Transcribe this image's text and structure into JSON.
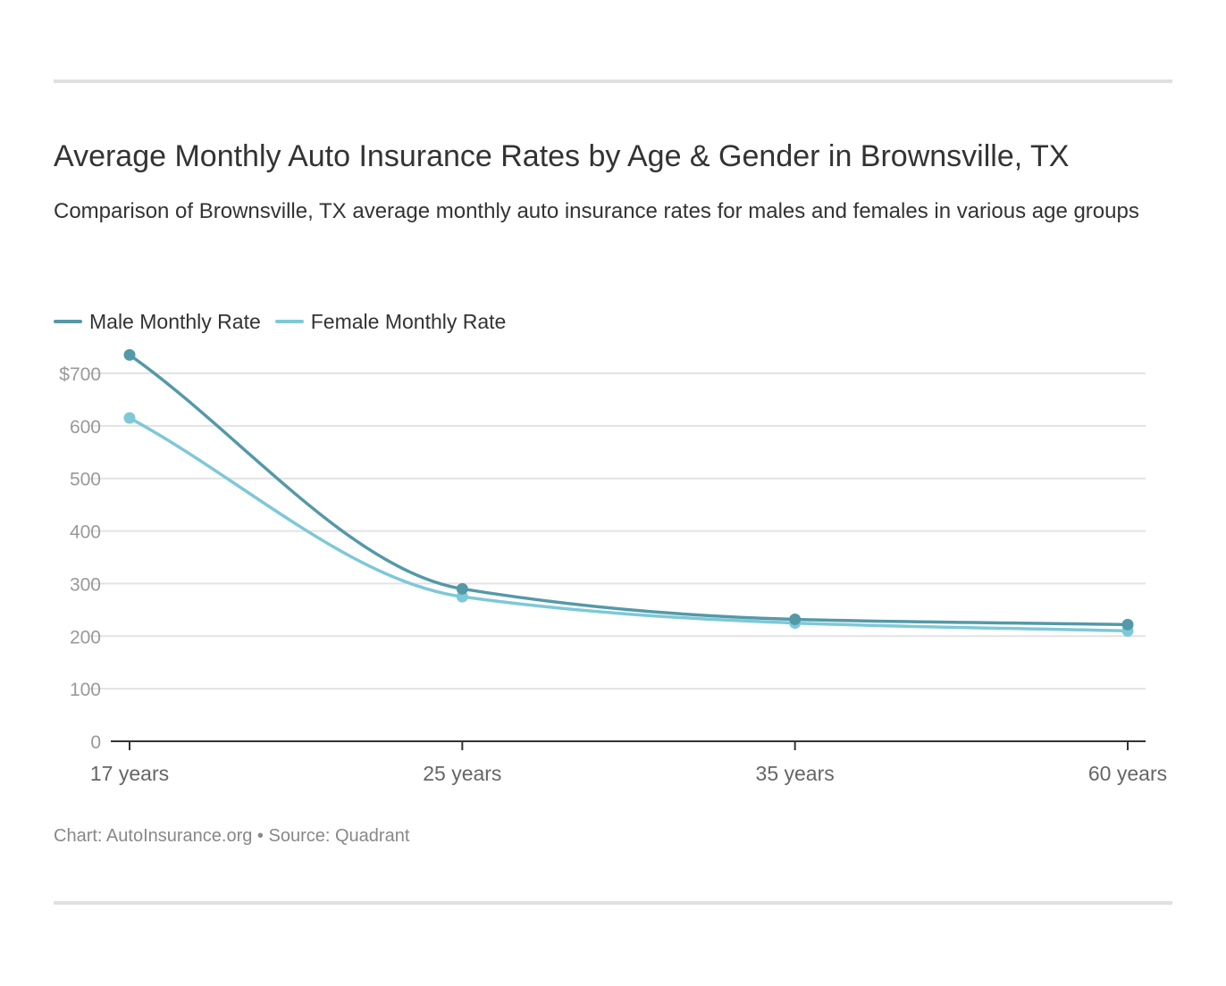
{
  "header": {
    "title": "Average Monthly Auto Insurance Rates by Age & Gender in Brownsville, TX",
    "subtitle": "Comparison of Brownsville, TX average monthly auto insurance rates for males and females in various age groups"
  },
  "footer": {
    "chart_label": "Chart:",
    "chart_source": "AutoInsurance.org",
    "separator": "•",
    "source_label": "Source:",
    "source_name": "Quadrant"
  },
  "colors": {
    "male": "#5499a8",
    "female": "#7ec8d8",
    "grid": "#e3e3e3",
    "axis": "#333333",
    "tick_text": "#999999",
    "x_tick_text": "#666666"
  },
  "chart_data": {
    "type": "line",
    "categories": [
      "17 years",
      "25 years",
      "35 years",
      "60 years"
    ],
    "series": [
      {
        "name": "Male Monthly Rate",
        "values": [
          735,
          290,
          232,
          222
        ]
      },
      {
        "name": "Female Monthly Rate",
        "values": [
          615,
          275,
          225,
          210
        ]
      }
    ],
    "y_ticks": [
      "0",
      "100",
      "200",
      "300",
      "400",
      "500",
      "600",
      "$700"
    ],
    "y_tick_values": [
      0,
      100,
      200,
      300,
      400,
      500,
      600,
      700
    ],
    "ylim": [
      0,
      700
    ],
    "grid": true,
    "legend_position": "top-left",
    "curve": "smooth",
    "markers": true
  }
}
